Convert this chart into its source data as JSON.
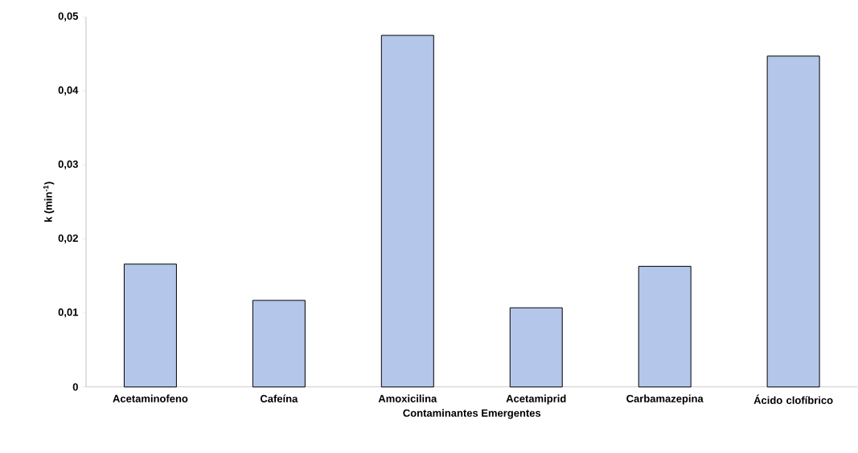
{
  "chart_data": {
    "type": "bar",
    "xlabel": "Contaminantes Emergentes",
    "ylabel": "k (min$^{-1}$)",
    "categories": [
      "Acetaminofeno",
      "Cafeína",
      "Amoxicilina",
      "Acetamiprid",
      "Carbamazepina",
      "Ácido clofíbrico"
    ],
    "values": [
      0.0166,
      0.0117,
      0.0475,
      0.0107,
      0.0163,
      0.0447
    ],
    "color": "#b4c6ea",
    "ylim": [
      0,
      0.05
    ],
    "yticks": [
      0,
      {
        "value": 0.01,
        "label": "0,01"
      },
      {
        "value": 0.02,
        "label": "0,02"
      },
      {
        "value": 0.03,
        "label": "0,03"
      },
      {
        "value": 0.04,
        "label": "0,04"
      },
      {
        "value": 0.05,
        "label": "0,05"
      }
    ],
    "grid": false
  }
}
